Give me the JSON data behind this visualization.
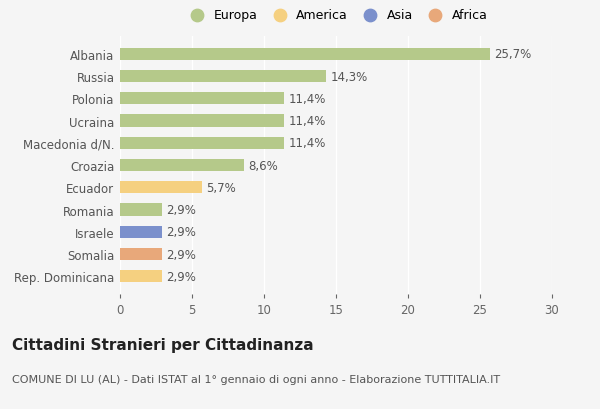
{
  "categories": [
    "Rep. Dominicana",
    "Somalia",
    "Israele",
    "Romania",
    "Ecuador",
    "Croazia",
    "Macedonia d/N.",
    "Ucraina",
    "Polonia",
    "Russia",
    "Albania"
  ],
  "values": [
    2.9,
    2.9,
    2.9,
    2.9,
    5.7,
    8.6,
    11.4,
    11.4,
    11.4,
    14.3,
    25.7
  ],
  "bar_colors": [
    "#f5d080",
    "#e8a87a",
    "#7b90cc",
    "#b5c98a",
    "#f5d080",
    "#b5c98a",
    "#b5c98a",
    "#b5c98a",
    "#b5c98a",
    "#b5c98a",
    "#b5c98a"
  ],
  "labels": [
    "2,9%",
    "2,9%",
    "2,9%",
    "2,9%",
    "5,7%",
    "8,6%",
    "11,4%",
    "11,4%",
    "11,4%",
    "14,3%",
    "25,7%"
  ],
  "title": "Cittadini Stranieri per Cittadinanza",
  "subtitle": "COMUNE DI LU (AL) - Dati ISTAT al 1° gennaio di ogni anno - Elaborazione TUTTITALIA.IT",
  "xlim": [
    0,
    30
  ],
  "xticks": [
    0,
    5,
    10,
    15,
    20,
    25,
    30
  ],
  "legend_items": [
    {
      "label": "Europa",
      "color": "#b5c98a"
    },
    {
      "label": "America",
      "color": "#f5d080"
    },
    {
      "label": "Asia",
      "color": "#7b90cc"
    },
    {
      "label": "Africa",
      "color": "#e8a87a"
    }
  ],
  "background_color": "#f5f5f5",
  "plot_bg_color": "#f5f5f5",
  "grid_color": "#ffffff",
  "bar_height": 0.55,
  "label_fontsize": 8.5,
  "title_fontsize": 11,
  "subtitle_fontsize": 8,
  "tick_fontsize": 8.5,
  "legend_fontsize": 9,
  "label_color": "#555555",
  "ytick_color": "#555555"
}
